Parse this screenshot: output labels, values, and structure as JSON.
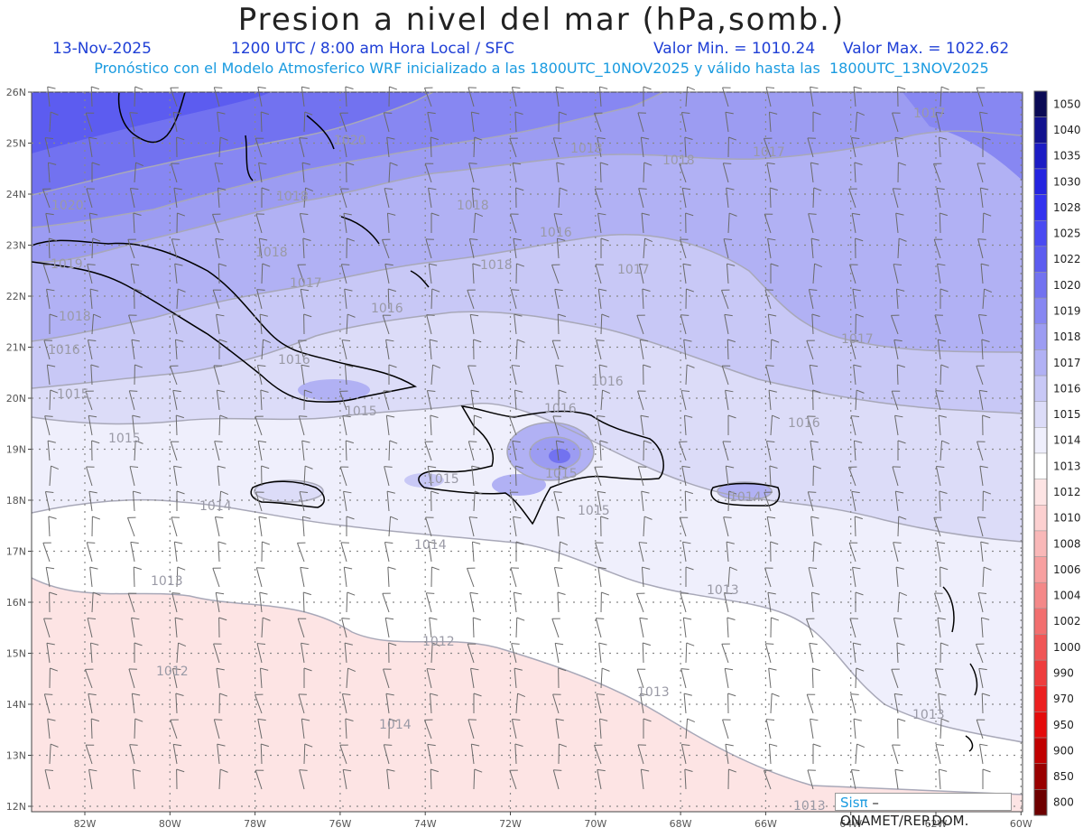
{
  "header": {
    "title": "Presion a nivel del mar (hPa,somb.)",
    "date": "13-Nov-2025",
    "time_info": "1200 UTC / 8:00 am Hora Local / SFC",
    "min_label": "Valor Min. = 1010.24",
    "max_label": "Valor Max. = 1022.62",
    "forecast_info": "Pronóstico con el Modelo Atmosferico WRF inicializado a las 1800UTC_10NOV2025 y válido hasta las  1800UTC_13NOV2025"
  },
  "credit": {
    "sis": "Sisπ",
    "org": " – ONAMET/REP.DOM."
  },
  "axes": {
    "lat_ticks": [
      "26N",
      "25N",
      "24N",
      "23N",
      "22N",
      "21N",
      "20N",
      "19N",
      "18N",
      "17N",
      "16N",
      "15N",
      "14N",
      "13N",
      "12N"
    ],
    "lon_ticks": [
      "82W",
      "80W",
      "78W",
      "76W",
      "74W",
      "72W",
      "70W",
      "68W",
      "66W",
      "64W",
      "62W",
      "60W"
    ]
  },
  "colorbar": {
    "labels": [
      "1050",
      "1040",
      "1035",
      "1030",
      "1028",
      "1025",
      "1022",
      "1020",
      "1019",
      "1018",
      "1017",
      "1016",
      "1015",
      "1014",
      "1013",
      "1012",
      "1010",
      "1008",
      "1006",
      "1004",
      "1002",
      "1000",
      "990",
      "970",
      "950",
      "900",
      "850",
      "800"
    ],
    "colors": [
      "#0a0a55",
      "#12128f",
      "#1c1cc4",
      "#2424e0",
      "#3232ef",
      "#4a4af2",
      "#5c5cf0",
      "#7272f0",
      "#8787f2",
      "#9c9cf2",
      "#b1b1f4",
      "#c8c8f6",
      "#dcdcf8",
      "#efeffc",
      "#ffffff",
      "#fde4e4",
      "#fcd0d0",
      "#f9b8b8",
      "#f7a0a0",
      "#f48888",
      "#f26f6f",
      "#f05656",
      "#ee3d3d",
      "#ec2020",
      "#e40b0b",
      "#c00000",
      "#990000",
      "#6e0000"
    ]
  },
  "contour_labels": [
    "1020",
    "1019",
    "1018",
    "1018",
    "1018",
    "1020",
    "1018",
    "1018",
    "1018",
    "1017",
    "1017",
    "1017",
    "1018",
    "1017",
    "1016",
    "1017",
    "1016",
    "1016",
    "1015",
    "1016",
    "1016",
    "1015",
    "1016",
    "1015",
    "1016",
    "1015",
    "1014",
    "1015",
    "1015",
    "1014",
    "1014",
    "1013",
    "1013",
    "1013",
    "1012",
    "1013",
    "1012",
    "1014",
    "1013"
  ]
}
